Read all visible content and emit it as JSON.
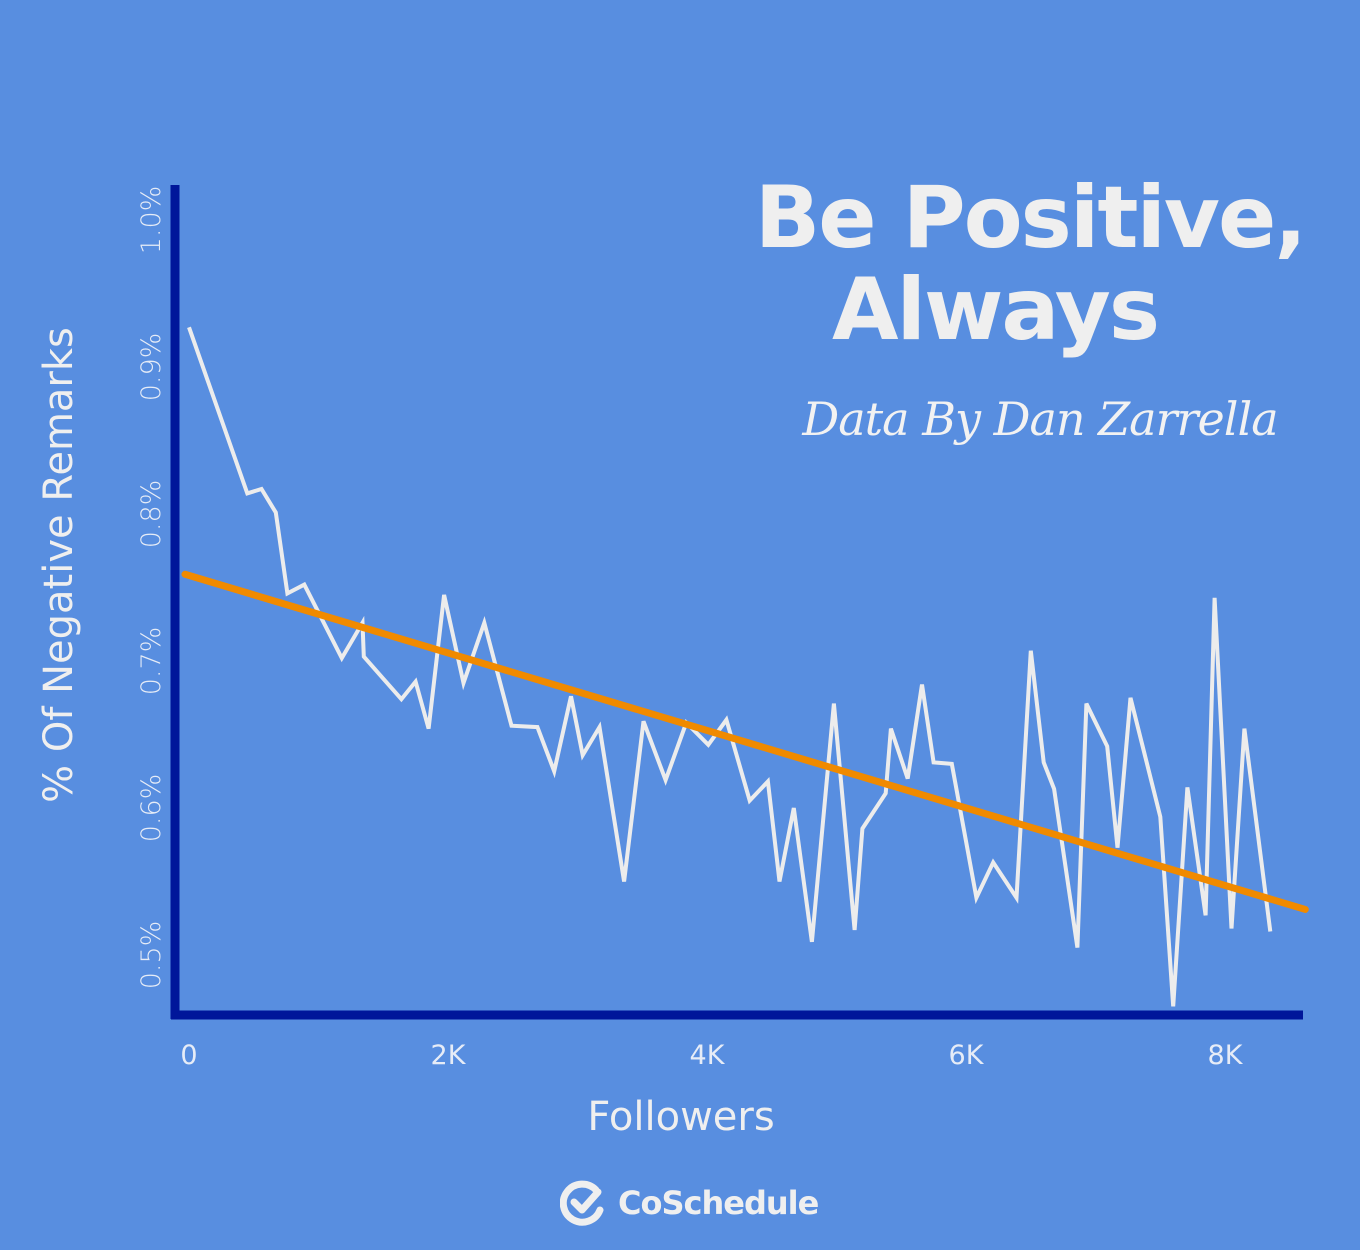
{
  "title_line1": "Be Positive,",
  "title_line2": "Always",
  "subtitle": "Data By Dan Zarrella",
  "brand": "CoSchedule",
  "colors": {
    "background": "#588ee0",
    "axis": "#00169a",
    "line": "#ececec",
    "trend": "#f08a00",
    "text": "#efefef"
  },
  "chart_data": {
    "type": "line",
    "xlabel": "Followers",
    "ylabel": "% Of Negative Remarks",
    "x_ticks": [
      "0",
      "2K",
      "4K",
      "6K",
      "8K"
    ],
    "x_tick_values": [
      0,
      2000,
      4000,
      6000,
      8000
    ],
    "y_ticks": [
      "0.5%",
      "0.6%",
      "0.7%",
      "0.8%",
      "0.9%",
      "1.0%"
    ],
    "y_tick_values": [
      0.5,
      0.6,
      0.7,
      0.8,
      0.9,
      1.0
    ],
    "xlim": [
      0,
      8600
    ],
    "ylim": [
      0.46,
      1.02
    ],
    "grid": false,
    "series": [
      {
        "x": [
          0,
          450,
          560,
          670,
          760,
          890,
          1180,
          1340,
          1350,
          1640,
          1750,
          1850,
          1970,
          2120,
          2280,
          2490,
          2690,
          2820,
          2950,
          3040,
          3170,
          3360,
          3510,
          3680,
          3840,
          4010,
          4150,
          4330,
          4470,
          4560,
          4670,
          4810,
          4980,
          5140,
          5200,
          5380,
          5420,
          5550,
          5660,
          5750,
          5890,
          6080,
          6210,
          6390,
          6500,
          6600,
          6680,
          6860,
          6930,
          7090,
          7170,
          7270,
          7500,
          7600,
          7710,
          7850,
          7920,
          8050,
          8150,
          8350
        ],
        "y": [
          0.927,
          0.814,
          0.817,
          0.801,
          0.746,
          0.752,
          0.702,
          0.726,
          0.703,
          0.674,
          0.686,
          0.654,
          0.745,
          0.685,
          0.726,
          0.656,
          0.655,
          0.625,
          0.676,
          0.636,
          0.655,
          0.55,
          0.659,
          0.619,
          0.658,
          0.643,
          0.66,
          0.605,
          0.618,
          0.55,
          0.6,
          0.509,
          0.671,
          0.517,
          0.586,
          0.61,
          0.654,
          0.62,
          0.684,
          0.631,
          0.63,
          0.539,
          0.563,
          0.539,
          0.707,
          0.631,
          0.613,
          0.505,
          0.671,
          0.642,
          0.573,
          0.675,
          0.594,
          0.465,
          0.614,
          0.527,
          0.743,
          0.518,
          0.654,
          0.516
        ]
      },
      {
        "type": "trendline",
        "x": [
          0,
          8620
        ],
        "y": [
          0.759,
          0.531
        ]
      }
    ]
  }
}
